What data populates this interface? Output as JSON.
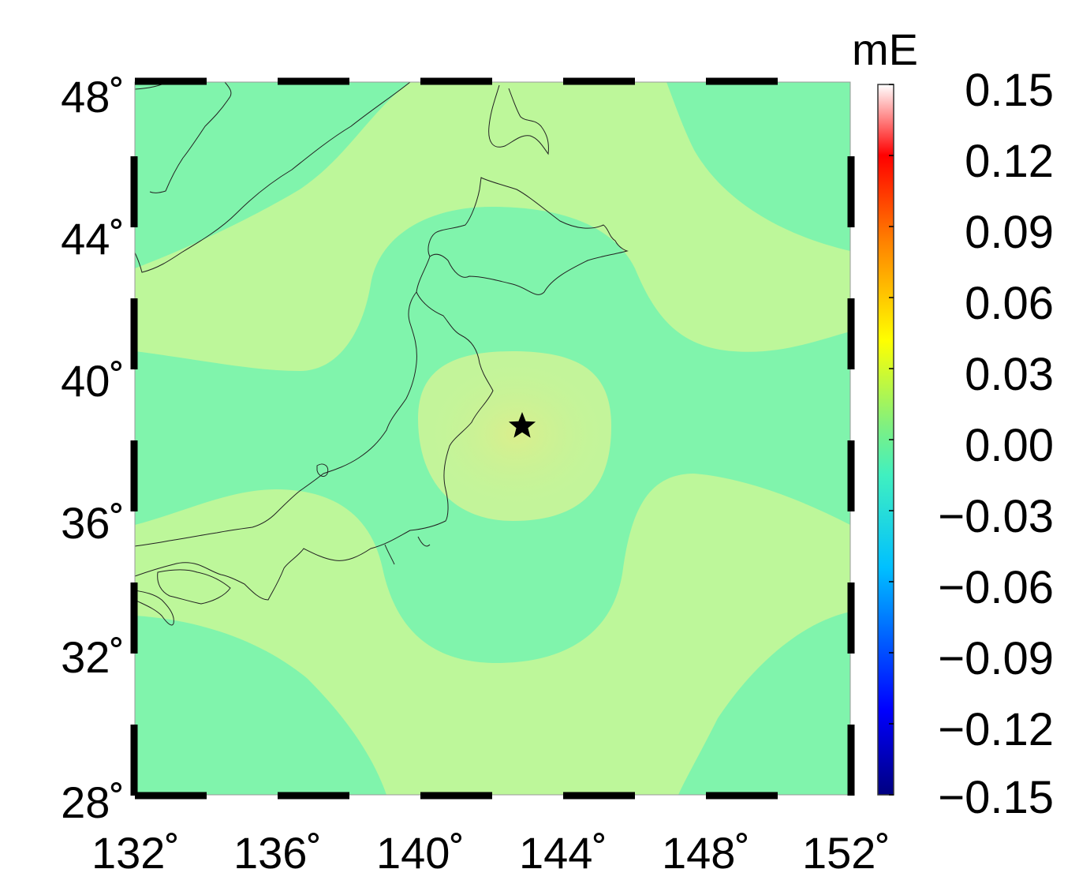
{
  "map": {
    "lat_ticks": [
      "48˚",
      "44˚",
      "40˚",
      "36˚",
      "32˚",
      "28˚"
    ],
    "lon_ticks": [
      "132˚",
      "136˚",
      "140˚",
      "144˚",
      "148˚",
      "152˚"
    ],
    "lon_range": [
      132,
      152
    ],
    "lat_range": [
      28,
      48
    ],
    "epicenter": {
      "lon": 142.8,
      "lat": 38.3,
      "marker": "star-icon"
    },
    "fill_colors": {
      "low": "#80f4ac",
      "high": "#bdf79a",
      "center": "#d6ef8e"
    }
  },
  "colorbar": {
    "unit": "mE",
    "ticks": [
      "0.15",
      "0.12",
      "0.09",
      "0.06",
      "0.03",
      "0.00",
      "−0.03",
      "−0.06",
      "−0.09",
      "−0.12",
      "−0.15"
    ],
    "range": [
      -0.15,
      0.15
    ],
    "colors": [
      "#000080",
      "#0000ff",
      "#00c0ff",
      "#40f0c0",
      "#80f080",
      "#ffff00",
      "#ff8000",
      "#ff0000",
      "#ffffff"
    ]
  }
}
